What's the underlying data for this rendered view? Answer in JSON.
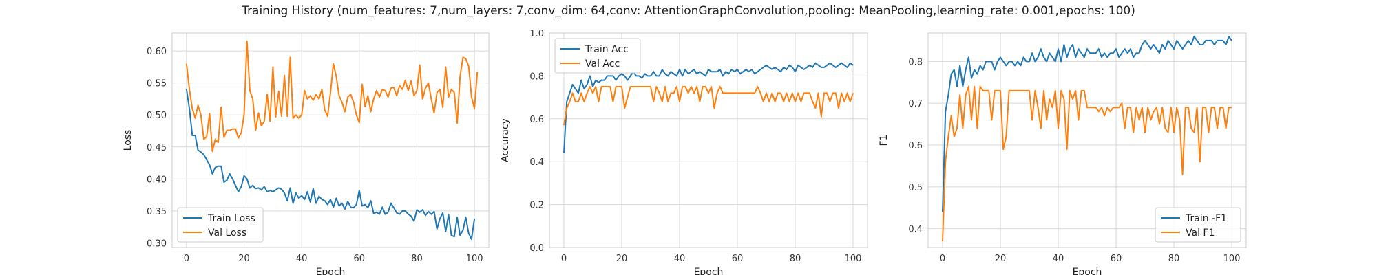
{
  "title": "Training History (num_features: 7,num_layers: 7,conv_dim: 64,conv: AttentionGraphConvolution,pooling: MeanPooling,learning_rate: 0.001,epochs: 100)",
  "colors": {
    "train": "#1f77b4",
    "val": "#ff7f0e",
    "grid": "#d9d9d9",
    "frame": "#cccccc"
  },
  "chart_data": [
    {
      "type": "line",
      "xlabel": "Epoch",
      "ylabel": "Loss",
      "xlim": [
        -5,
        105
      ],
      "ylim": [
        0.293,
        0.628
      ],
      "xticks": [
        0,
        20,
        40,
        60,
        80,
        100
      ],
      "yticks": [
        0.3,
        0.35,
        0.4,
        0.45,
        0.5,
        0.55,
        0.6
      ],
      "ytick_labels": [
        "0.30",
        "0.35",
        "0.40",
        "0.45",
        "0.50",
        "0.55",
        "0.60"
      ],
      "grid": true,
      "legend": "bottom-left",
      "series": [
        {
          "name": "Train Loss",
          "color": "#1f77b4",
          "values": [
            0.54,
            0.51,
            0.468,
            0.468,
            0.445,
            0.442,
            0.438,
            0.43,
            0.422,
            0.408,
            0.418,
            0.42,
            0.42,
            0.395,
            0.398,
            0.408,
            0.4,
            0.39,
            0.38,
            0.388,
            0.405,
            0.4,
            0.386,
            0.39,
            0.385,
            0.386,
            0.383,
            0.388,
            0.38,
            0.382,
            0.38,
            0.383,
            0.386,
            0.384,
            0.378,
            0.366,
            0.386,
            0.362,
            0.378,
            0.37,
            0.374,
            0.368,
            0.38,
            0.364,
            0.385,
            0.362,
            0.373,
            0.368,
            0.366,
            0.36,
            0.368,
            0.356,
            0.37,
            0.358,
            0.362,
            0.353,
            0.365,
            0.356,
            0.355,
            0.36,
            0.382,
            0.358,
            0.36,
            0.355,
            0.366,
            0.346,
            0.348,
            0.345,
            0.356,
            0.345,
            0.348,
            0.362,
            0.355,
            0.347,
            0.345,
            0.35,
            0.35,
            0.345,
            0.342,
            0.334,
            0.352,
            0.348,
            0.352,
            0.343,
            0.349,
            0.345,
            0.349,
            0.322,
            0.338,
            0.347,
            0.318,
            0.344,
            0.312,
            0.31,
            0.34,
            0.312,
            0.32,
            0.34,
            0.315,
            0.306,
            0.338
          ]
        },
        {
          "name": "Val Loss",
          "color": "#ff7f0e",
          "values": [
            0.58,
            0.54,
            0.51,
            0.495,
            0.515,
            0.5,
            0.462,
            0.466,
            0.502,
            0.443,
            0.462,
            0.457,
            0.512,
            0.465,
            0.476,
            0.476,
            0.478,
            0.478,
            0.464,
            0.472,
            0.5,
            0.615,
            0.538,
            0.525,
            0.476,
            0.503,
            0.483,
            0.49,
            0.532,
            0.49,
            0.575,
            0.497,
            0.537,
            0.498,
            0.562,
            0.498,
            0.59,
            0.495,
            0.5,
            0.495,
            0.5,
            0.538,
            0.525,
            0.53,
            0.523,
            0.532,
            0.525,
            0.54,
            0.508,
            0.498,
            0.535,
            0.58,
            0.56,
            0.53,
            0.52,
            0.505,
            0.528,
            0.532,
            0.52,
            0.5,
            0.488,
            0.548,
            0.513,
            0.53,
            0.505,
            0.525,
            0.538,
            0.528,
            0.54,
            0.538,
            0.528,
            0.542,
            0.543,
            0.53,
            0.546,
            0.54,
            0.554,
            0.538,
            0.553,
            0.53,
            0.538,
            0.578,
            0.525,
            0.542,
            0.55,
            0.525,
            0.503,
            0.535,
            0.54,
            0.512,
            0.575,
            0.528,
            0.54,
            0.535,
            0.487,
            0.56,
            0.59,
            0.588,
            0.576,
            0.528,
            0.51,
            0.568
          ]
        }
      ]
    },
    {
      "type": "line",
      "xlabel": "Epoch",
      "ylabel": "Accuracy",
      "xlim": [
        -5,
        105
      ],
      "ylim": [
        0.0,
        1.0
      ],
      "xticks": [
        0,
        20,
        40,
        60,
        80,
        100
      ],
      "yticks": [
        0.0,
        0.2,
        0.4,
        0.6,
        0.8,
        1.0
      ],
      "ytick_labels": [
        "0.0",
        "0.2",
        "0.4",
        "0.6",
        "0.8",
        "1.0"
      ],
      "grid": true,
      "legend": "top-left",
      "series": [
        {
          "name": "Train Acc",
          "color": "#1f77b4",
          "values": [
            0.44,
            0.68,
            0.72,
            0.76,
            0.74,
            0.72,
            0.78,
            0.74,
            0.76,
            0.8,
            0.75,
            0.78,
            0.77,
            0.78,
            0.78,
            0.8,
            0.8,
            0.8,
            0.78,
            0.8,
            0.81,
            0.8,
            0.78,
            0.8,
            0.82,
            0.8,
            0.8,
            0.79,
            0.81,
            0.8,
            0.8,
            0.82,
            0.8,
            0.8,
            0.83,
            0.81,
            0.8,
            0.82,
            0.81,
            0.8,
            0.83,
            0.8,
            0.83,
            0.81,
            0.82,
            0.83,
            0.81,
            0.82,
            0.81,
            0.8,
            0.83,
            0.82,
            0.82,
            0.82,
            0.83,
            0.8,
            0.82,
            0.81,
            0.83,
            0.82,
            0.83,
            0.81,
            0.82,
            0.83,
            0.82,
            0.83,
            0.81,
            0.82,
            0.83,
            0.84,
            0.85,
            0.84,
            0.83,
            0.84,
            0.83,
            0.82,
            0.84,
            0.83,
            0.85,
            0.84,
            0.82,
            0.85,
            0.84,
            0.83,
            0.84,
            0.85,
            0.84,
            0.86,
            0.85,
            0.84,
            0.84,
            0.85,
            0.86,
            0.85,
            0.84,
            0.85,
            0.86,
            0.85,
            0.84,
            0.86,
            0.85
          ]
        },
        {
          "name": "Val Acc",
          "color": "#ff7f0e",
          "values": [
            0.57,
            0.65,
            0.68,
            0.72,
            0.68,
            0.68,
            0.72,
            0.68,
            0.72,
            0.75,
            0.72,
            0.75,
            0.68,
            0.75,
            0.75,
            0.75,
            0.75,
            0.68,
            0.75,
            0.75,
            0.75,
            0.65,
            0.7,
            0.75,
            0.75,
            0.75,
            0.75,
            0.75,
            0.75,
            0.75,
            0.75,
            0.68,
            0.75,
            0.72,
            0.68,
            0.75,
            0.68,
            0.72,
            0.72,
            0.75,
            0.68,
            0.75,
            0.75,
            0.72,
            0.75,
            0.72,
            0.75,
            0.68,
            0.75,
            0.75,
            0.72,
            0.75,
            0.65,
            0.72,
            0.75,
            0.72,
            0.72,
            0.72,
            0.72,
            0.72,
            0.72,
            0.72,
            0.72,
            0.72,
            0.72,
            0.72,
            0.72,
            0.75,
            0.72,
            0.68,
            0.72,
            0.68,
            0.72,
            0.68,
            0.72,
            0.72,
            0.68,
            0.72,
            0.68,
            0.72,
            0.68,
            0.72,
            0.68,
            0.72,
            0.72,
            0.72,
            0.68,
            0.65,
            0.72,
            0.61,
            0.72,
            0.72,
            0.68,
            0.72,
            0.72,
            0.65,
            0.72,
            0.68,
            0.72,
            0.68,
            0.72
          ]
        }
      ]
    },
    {
      "type": "line",
      "xlabel": "Epoch",
      "ylabel": "F1",
      "xlim": [
        -5,
        105
      ],
      "ylim": [
        0.355,
        0.868
      ],
      "xticks": [
        0,
        20,
        40,
        60,
        80,
        100
      ],
      "yticks": [
        0.4,
        0.5,
        0.6,
        0.7,
        0.8
      ],
      "ytick_labels": [
        "0.4",
        "0.5",
        "0.6",
        "0.7",
        "0.8"
      ],
      "grid": true,
      "legend": "bottom-right",
      "series": [
        {
          "name": "Train -F1",
          "color": "#1f77b4",
          "values": [
            0.44,
            0.68,
            0.72,
            0.77,
            0.78,
            0.74,
            0.79,
            0.74,
            0.78,
            0.81,
            0.76,
            0.78,
            0.77,
            0.79,
            0.78,
            0.8,
            0.8,
            0.8,
            0.78,
            0.8,
            0.81,
            0.8,
            0.79,
            0.8,
            0.8,
            0.79,
            0.8,
            0.79,
            0.81,
            0.8,
            0.8,
            0.82,
            0.8,
            0.81,
            0.83,
            0.81,
            0.8,
            0.82,
            0.81,
            0.8,
            0.83,
            0.8,
            0.84,
            0.81,
            0.83,
            0.84,
            0.81,
            0.83,
            0.82,
            0.81,
            0.83,
            0.82,
            0.82,
            0.82,
            0.83,
            0.81,
            0.82,
            0.81,
            0.82,
            0.82,
            0.83,
            0.81,
            0.82,
            0.83,
            0.82,
            0.83,
            0.81,
            0.82,
            0.82,
            0.84,
            0.85,
            0.84,
            0.83,
            0.84,
            0.83,
            0.82,
            0.84,
            0.83,
            0.85,
            0.84,
            0.83,
            0.85,
            0.84,
            0.83,
            0.84,
            0.85,
            0.84,
            0.86,
            0.85,
            0.84,
            0.84,
            0.85,
            0.85,
            0.85,
            0.84,
            0.85,
            0.85,
            0.85,
            0.84,
            0.86,
            0.85
          ]
        },
        {
          "name": "Val F1",
          "color": "#ff7f0e",
          "values": [
            0.37,
            0.56,
            0.62,
            0.67,
            0.62,
            0.64,
            0.72,
            0.64,
            0.72,
            0.74,
            0.66,
            0.74,
            0.64,
            0.74,
            0.73,
            0.73,
            0.73,
            0.66,
            0.73,
            0.73,
            0.73,
            0.59,
            0.62,
            0.73,
            0.73,
            0.73,
            0.73,
            0.73,
            0.73,
            0.73,
            0.73,
            0.66,
            0.73,
            0.69,
            0.64,
            0.73,
            0.66,
            0.71,
            0.69,
            0.73,
            0.64,
            0.73,
            0.71,
            0.59,
            0.73,
            0.71,
            0.73,
            0.66,
            0.73,
            0.73,
            0.69,
            0.69,
            0.69,
            0.69,
            0.68,
            0.69,
            0.67,
            0.69,
            0.68,
            0.69,
            0.69,
            0.69,
            0.7,
            0.64,
            0.69,
            0.69,
            0.63,
            0.69,
            0.66,
            0.69,
            0.63,
            0.69,
            0.66,
            0.68,
            0.69,
            0.65,
            0.69,
            0.64,
            0.63,
            0.69,
            0.63,
            0.69,
            0.66,
            0.53,
            0.69,
            0.69,
            0.64,
            0.63,
            0.69,
            0.56,
            0.69,
            0.69,
            0.63,
            0.69,
            0.69,
            0.64,
            0.69,
            0.69,
            0.64,
            0.69,
            0.69
          ]
        }
      ]
    }
  ]
}
